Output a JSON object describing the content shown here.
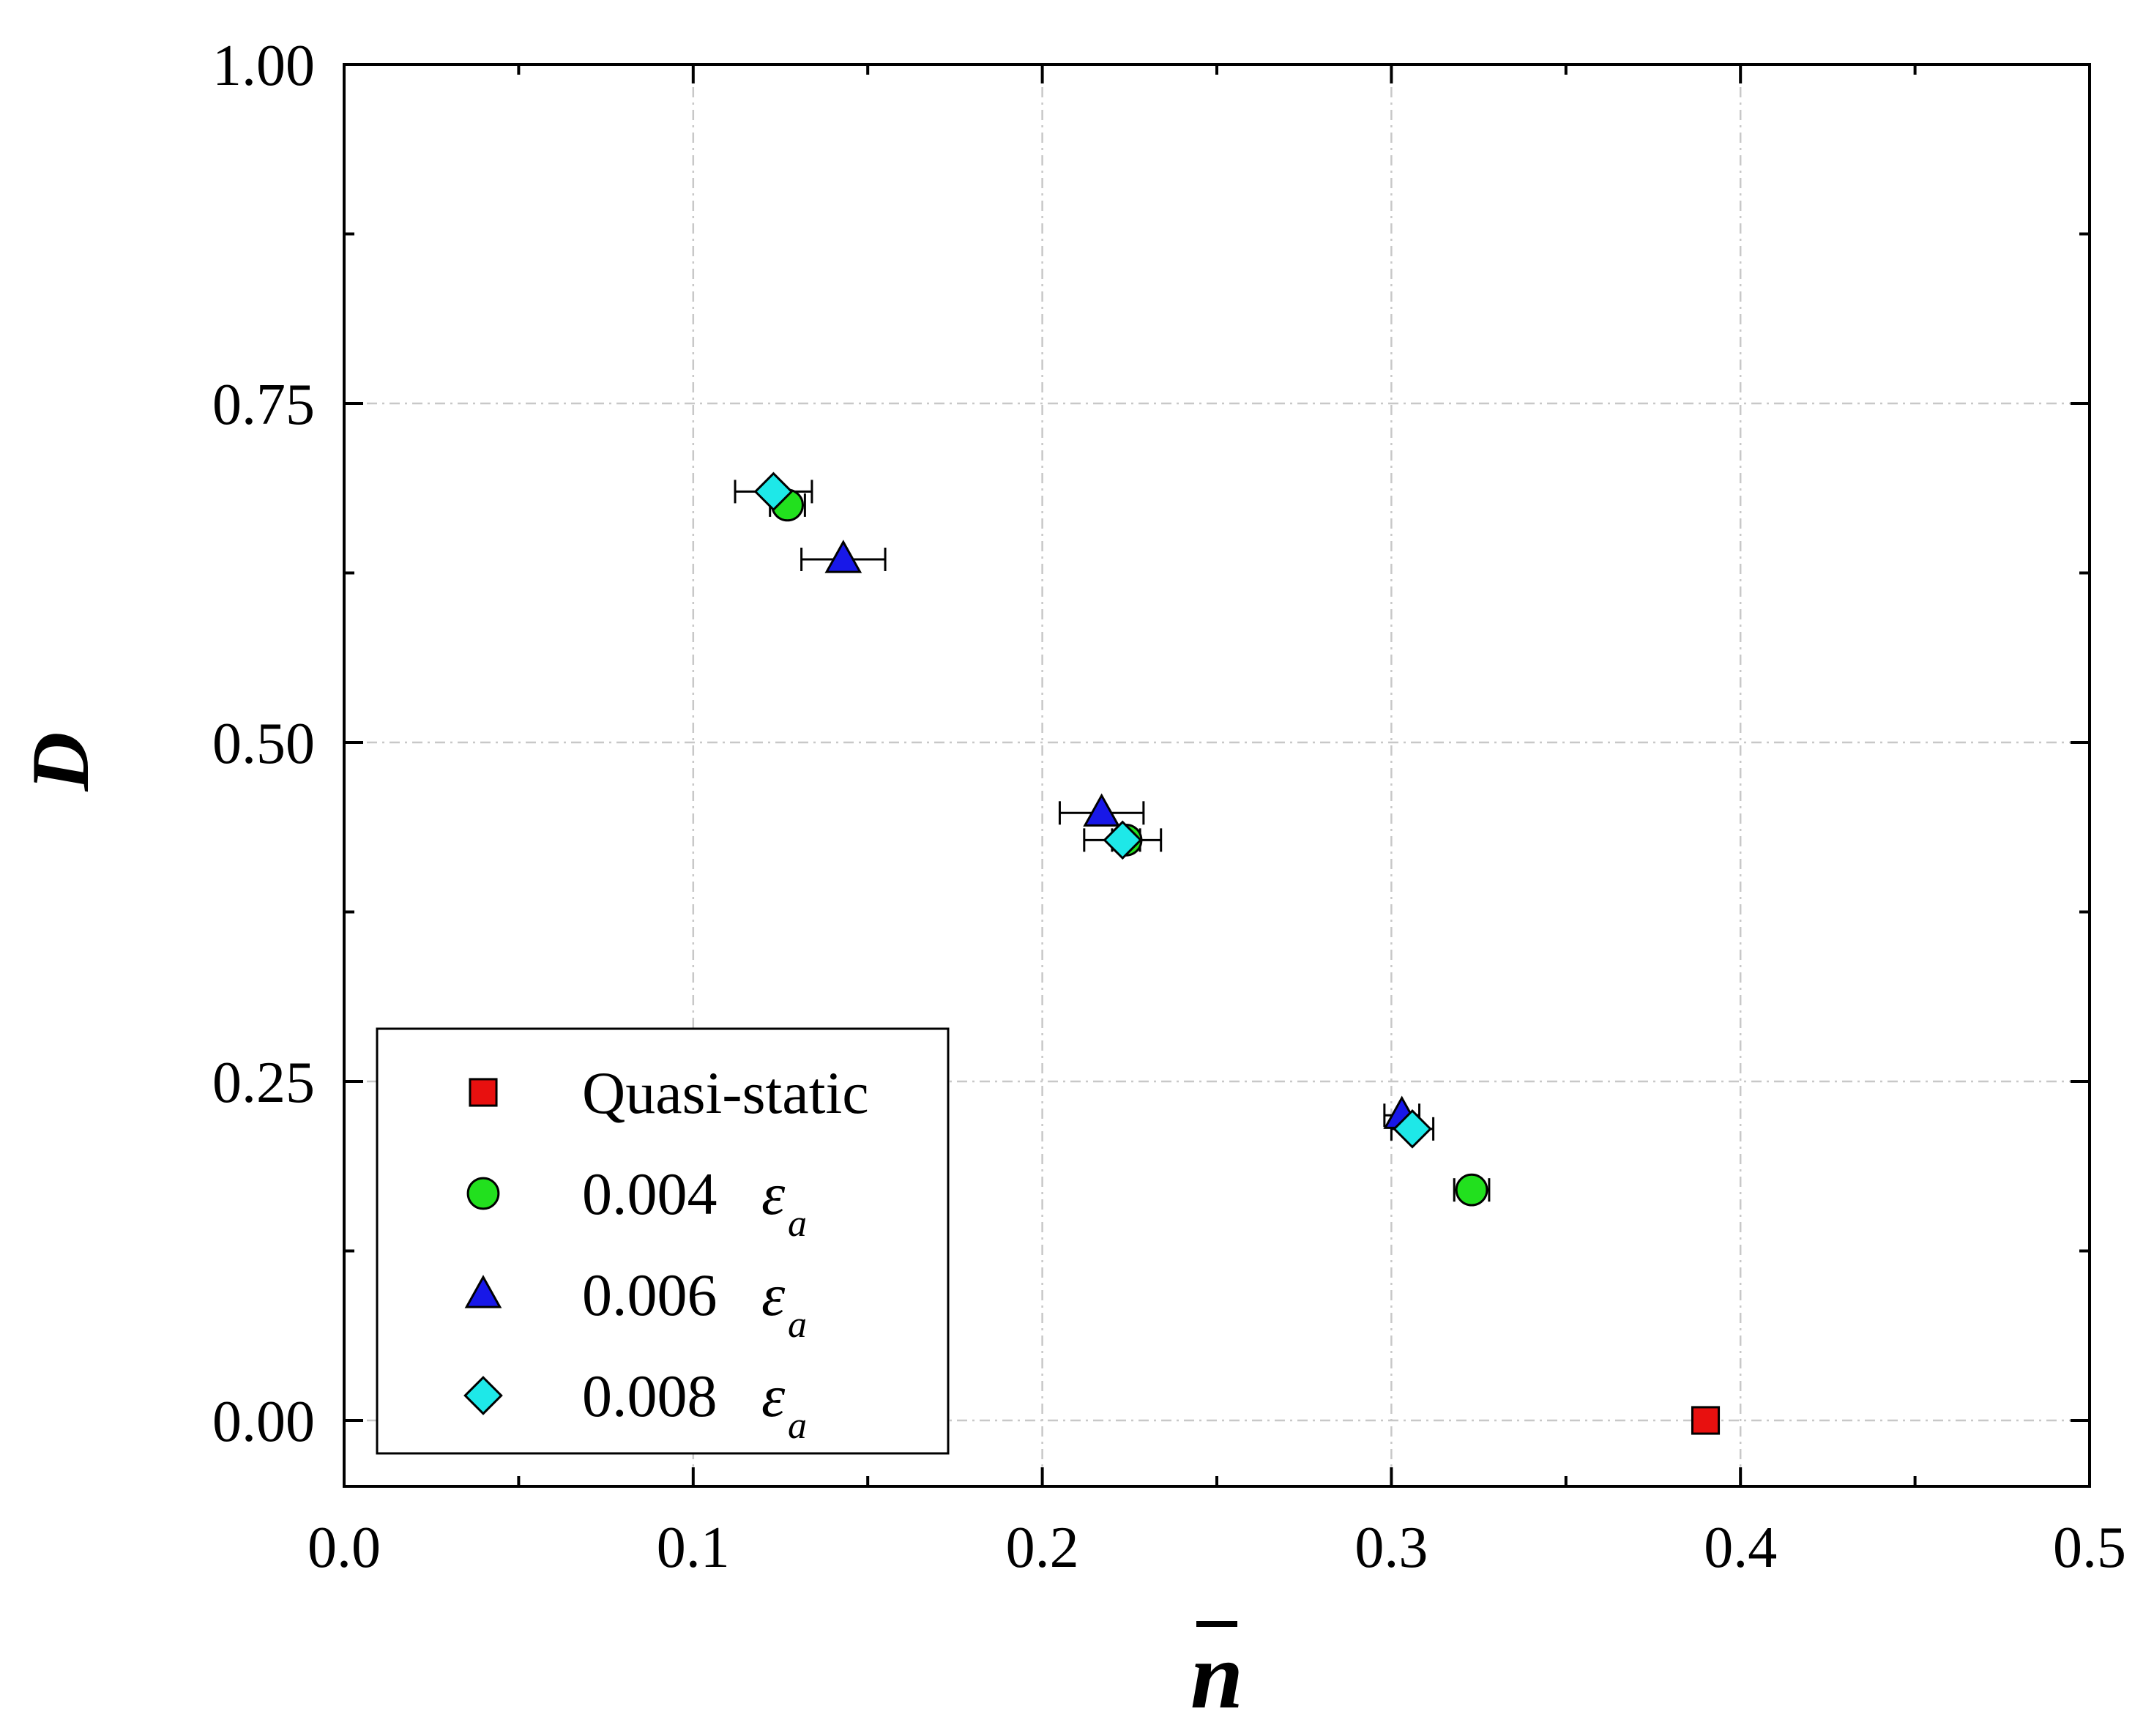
{
  "chart_data": {
    "type": "scatter",
    "title": "",
    "xlabel": "n",
    "ylabel": "D",
    "xlim": [
      0.0,
      0.5
    ],
    "ylim": [
      -0.05,
      1.0
    ],
    "xticks": [
      "0.0",
      "0.1",
      "0.2",
      "0.3",
      "0.4",
      "0.5"
    ],
    "yticks": [
      "0.00",
      "0.25",
      "0.50",
      "0.75",
      "1.00"
    ],
    "grid": true,
    "legend_position": "bottom-left",
    "series": [
      {
        "name": "Quasi-static",
        "legend_value": "Quasi-static",
        "legend_eps": "",
        "legend_sub": "",
        "marker": "square",
        "color": "#e8100f",
        "points": [
          {
            "x": 0.39,
            "y": 0.0,
            "xerr": 0
          }
        ]
      },
      {
        "name": "0.004 εa",
        "legend_value": "0.004",
        "legend_eps": "ε",
        "legend_sub": "a",
        "marker": "circle",
        "color": "#22e01e",
        "points": [
          {
            "x": 0.127,
            "y": 0.675,
            "xerr": 0.005
          },
          {
            "x": 0.224,
            "y": 0.428,
            "xerr": 0.004
          },
          {
            "x": 0.323,
            "y": 0.17,
            "xerr": 0.005
          }
        ]
      },
      {
        "name": "0.006 εa",
        "legend_value": "0.006",
        "legend_eps": "ε",
        "legend_sub": "a",
        "marker": "triangle",
        "color": "#1818e8",
        "points": [
          {
            "x": 0.143,
            "y": 0.635,
            "xerr": 0.012
          },
          {
            "x": 0.217,
            "y": 0.448,
            "xerr": 0.012
          },
          {
            "x": 0.303,
            "y": 0.225,
            "xerr": 0.005
          }
        ]
      },
      {
        "name": "0.008 εa",
        "legend_value": "0.008",
        "legend_eps": "ε",
        "legend_sub": "a",
        "marker": "diamond",
        "color": "#1ee8e8",
        "points": [
          {
            "x": 0.123,
            "y": 0.685,
            "xerr": 0.011
          },
          {
            "x": 0.223,
            "y": 0.428,
            "xerr": 0.011
          },
          {
            "x": 0.306,
            "y": 0.215,
            "xerr": 0.006
          }
        ]
      }
    ]
  }
}
